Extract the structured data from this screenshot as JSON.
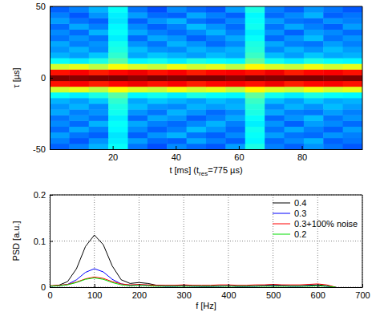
{
  "chart_data": [
    {
      "type": "heatmap",
      "xlabel": [
        "t [ms] (t",
        "res",
        "=775 µs)"
      ],
      "ylabel": "τ [µs]",
      "x": [
        3.1,
        9.3,
        15.5,
        21.7,
        27.9,
        34.1,
        40.3,
        46.5,
        52.7,
        58.9,
        65.1,
        71.3,
        77.5,
        83.7,
        89.9,
        96.1
      ],
      "y": [
        -48,
        -44,
        -40,
        -36,
        -32,
        -28,
        -24,
        -20,
        -16,
        -12,
        -8,
        -4,
        0,
        4,
        8,
        12,
        16,
        20,
        24,
        28,
        32,
        36,
        40,
        44,
        48
      ],
      "cells": [
        [
          0.22,
          0.25,
          0.3,
          0.38,
          0.24,
          0.2,
          0.26,
          0.23,
          0.21,
          0.28,
          0.4,
          0.25,
          0.22,
          0.27,
          0.24,
          0.21
        ],
        [
          0.25,
          0.21,
          0.27,
          0.36,
          0.28,
          0.23,
          0.22,
          0.29,
          0.25,
          0.22,
          0.37,
          0.23,
          0.26,
          0.3,
          0.22,
          0.24
        ],
        [
          0.28,
          0.24,
          0.22,
          0.35,
          0.22,
          0.27,
          0.3,
          0.24,
          0.22,
          0.26,
          0.38,
          0.28,
          0.24,
          0.23,
          0.27,
          0.25
        ],
        [
          0.23,
          0.29,
          0.25,
          0.37,
          0.26,
          0.22,
          0.25,
          0.31,
          0.27,
          0.23,
          0.39,
          0.24,
          0.29,
          0.25,
          0.22,
          0.28
        ],
        [
          0.26,
          0.23,
          0.3,
          0.38,
          0.29,
          0.25,
          0.23,
          0.26,
          0.3,
          0.25,
          0.36,
          0.27,
          0.22,
          0.28,
          0.26,
          0.23
        ],
        [
          0.24,
          0.27,
          0.24,
          0.36,
          0.23,
          0.29,
          0.27,
          0.22,
          0.25,
          0.29,
          0.38,
          0.23,
          0.27,
          0.31,
          0.24,
          0.27
        ],
        [
          0.29,
          0.25,
          0.27,
          0.39,
          0.27,
          0.24,
          0.3,
          0.27,
          0.23,
          0.26,
          0.4,
          0.29,
          0.25,
          0.24,
          0.28,
          0.25
        ],
        [
          0.27,
          0.3,
          0.26,
          0.4,
          0.31,
          0.27,
          0.26,
          0.3,
          0.28,
          0.3,
          0.41,
          0.26,
          0.3,
          0.27,
          0.31,
          0.28
        ],
        [
          0.3,
          0.28,
          0.32,
          0.42,
          0.29,
          0.32,
          0.3,
          0.28,
          0.31,
          0.29,
          0.43,
          0.31,
          0.28,
          0.32,
          0.29,
          0.3
        ],
        [
          0.38,
          0.36,
          0.4,
          0.46,
          0.37,
          0.39,
          0.36,
          0.4,
          0.38,
          0.37,
          0.47,
          0.39,
          0.36,
          0.4,
          0.38,
          0.37
        ],
        [
          0.58,
          0.6,
          0.56,
          0.62,
          0.59,
          0.57,
          0.61,
          0.58,
          0.6,
          0.56,
          0.63,
          0.59,
          0.57,
          0.61,
          0.58,
          0.6
        ],
        [
          0.86,
          0.88,
          0.85,
          0.87,
          0.89,
          0.86,
          0.88,
          0.85,
          0.87,
          0.88,
          0.86,
          0.89,
          0.85,
          0.87,
          0.88,
          0.86
        ],
        [
          1,
          0.99,
          1,
          1,
          0.98,
          1,
          0.99,
          1,
          1,
          0.98,
          1,
          0.99,
          1,
          1,
          0.99,
          1
        ],
        [
          0.86,
          0.88,
          0.85,
          0.87,
          0.89,
          0.86,
          0.88,
          0.85,
          0.87,
          0.88,
          0.86,
          0.89,
          0.85,
          0.87,
          0.88,
          0.86
        ],
        [
          0.58,
          0.6,
          0.56,
          0.62,
          0.59,
          0.57,
          0.61,
          0.58,
          0.6,
          0.56,
          0.63,
          0.59,
          0.57,
          0.61,
          0.58,
          0.6
        ],
        [
          0.38,
          0.36,
          0.4,
          0.46,
          0.37,
          0.39,
          0.36,
          0.4,
          0.38,
          0.37,
          0.47,
          0.39,
          0.36,
          0.4,
          0.38,
          0.37
        ],
        [
          0.3,
          0.28,
          0.32,
          0.42,
          0.29,
          0.32,
          0.3,
          0.28,
          0.31,
          0.29,
          0.43,
          0.31,
          0.28,
          0.32,
          0.29,
          0.3
        ],
        [
          0.27,
          0.3,
          0.26,
          0.4,
          0.31,
          0.27,
          0.26,
          0.3,
          0.28,
          0.3,
          0.41,
          0.26,
          0.3,
          0.27,
          0.31,
          0.28
        ],
        [
          0.29,
          0.25,
          0.27,
          0.39,
          0.27,
          0.24,
          0.3,
          0.27,
          0.23,
          0.26,
          0.4,
          0.29,
          0.25,
          0.24,
          0.28,
          0.25
        ],
        [
          0.24,
          0.27,
          0.24,
          0.36,
          0.23,
          0.29,
          0.27,
          0.22,
          0.25,
          0.29,
          0.38,
          0.23,
          0.27,
          0.31,
          0.24,
          0.27
        ],
        [
          0.26,
          0.23,
          0.3,
          0.38,
          0.29,
          0.25,
          0.23,
          0.26,
          0.3,
          0.25,
          0.36,
          0.27,
          0.22,
          0.28,
          0.26,
          0.23
        ],
        [
          0.23,
          0.29,
          0.25,
          0.37,
          0.26,
          0.22,
          0.25,
          0.31,
          0.27,
          0.23,
          0.39,
          0.24,
          0.29,
          0.25,
          0.22,
          0.28
        ],
        [
          0.28,
          0.24,
          0.22,
          0.35,
          0.22,
          0.27,
          0.3,
          0.24,
          0.22,
          0.26,
          0.38,
          0.28,
          0.24,
          0.23,
          0.27,
          0.25
        ],
        [
          0.25,
          0.21,
          0.27,
          0.36,
          0.28,
          0.23,
          0.22,
          0.29,
          0.25,
          0.22,
          0.37,
          0.23,
          0.26,
          0.3,
          0.22,
          0.24
        ],
        [
          0.22,
          0.25,
          0.3,
          0.38,
          0.24,
          0.2,
          0.26,
          0.23,
          0.21,
          0.28,
          0.4,
          0.25,
          0.22,
          0.27,
          0.24,
          0.21
        ]
      ],
      "zlim": [
        0,
        1
      ],
      "xlim": [
        0,
        99.2
      ],
      "ylim": [
        -50,
        50
      ],
      "xticks": [
        20,
        40,
        60,
        80
      ],
      "yticks": [
        -50,
        0,
        50
      ]
    },
    {
      "type": "line",
      "xlabel": "f [Hz]",
      "ylabel": "PSD [a.u.]",
      "x": [
        0,
        20,
        40,
        60,
        80,
        100,
        120,
        140,
        160,
        180,
        200,
        220,
        240,
        260,
        280,
        300,
        320,
        340,
        360,
        380,
        400,
        420,
        440,
        460,
        480,
        500,
        520,
        540,
        560,
        580,
        600,
        620,
        640
      ],
      "series": [
        {
          "name": "0.4",
          "color": "#000000",
          "values": [
            0.002,
            0.004,
            0.012,
            0.04,
            0.088,
            0.113,
            0.092,
            0.046,
            0.016,
            0.008,
            0.01,
            0.008,
            0.004,
            0.003,
            0.003,
            0.004,
            0.003,
            0.002,
            0.002,
            0.003,
            0.003,
            0.002,
            0.002,
            0.003,
            0.004,
            0.005,
            0.004,
            0.003,
            0.003,
            0.004,
            0.005,
            0.003,
            0.0
          ]
        },
        {
          "name": "0.3",
          "color": "#0000ff",
          "values": [
            0.002,
            0.003,
            0.006,
            0.016,
            0.032,
            0.04,
            0.033,
            0.017,
            0.007,
            0.004,
            0.005,
            0.004,
            0.003,
            0.002,
            0.002,
            0.003,
            0.002,
            0.002,
            0.002,
            0.002,
            0.003,
            0.002,
            0.002,
            0.002,
            0.003,
            0.003,
            0.003,
            0.002,
            0.002,
            0.003,
            0.003,
            0.002,
            0.0
          ]
        },
        {
          "name": "0.3+100% noise",
          "color": "#ff0000",
          "values": [
            0.003,
            0.004,
            0.006,
            0.011,
            0.018,
            0.022,
            0.019,
            0.012,
            0.007,
            0.005,
            0.006,
            0.005,
            0.004,
            0.004,
            0.004,
            0.005,
            0.004,
            0.004,
            0.004,
            0.005,
            0.005,
            0.004,
            0.004,
            0.005,
            0.005,
            0.006,
            0.005,
            0.005,
            0.005,
            0.006,
            0.007,
            0.005,
            0.0
          ]
        },
        {
          "name": "0.2",
          "color": "#00dd00",
          "values": [
            0.002,
            0.003,
            0.005,
            0.01,
            0.017,
            0.02,
            0.017,
            0.01,
            0.005,
            0.003,
            0.004,
            0.003,
            0.002,
            0.002,
            0.002,
            0.002,
            0.002,
            0.002,
            0.002,
            0.002,
            0.002,
            0.002,
            0.002,
            0.002,
            0.002,
            0.002,
            0.002,
            0.002,
            0.002,
            0.002,
            0.003,
            0.002,
            0.0
          ]
        }
      ],
      "xlim": [
        0,
        700
      ],
      "ylim": [
        0,
        0.2
      ],
      "xticks": [
        0,
        100,
        200,
        300,
        400,
        500,
        600,
        700
      ],
      "yticks": [
        0,
        0.1,
        0.2
      ],
      "grid": true,
      "legend": "upper right"
    }
  ]
}
